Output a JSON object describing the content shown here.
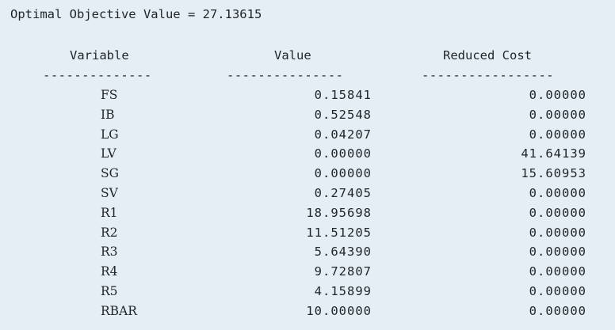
{
  "objective": {
    "text": "Optimal Objective Value = 27.13615"
  },
  "table": {
    "headers": {
      "variable": "Variable",
      "value": "Value",
      "reduced_cost": "Reduced Cost"
    },
    "dividers": {
      "variable": "--------------",
      "value": "---------------",
      "reduced_cost": "-----------------"
    },
    "rows": [
      {
        "variable": "FS",
        "value": "0.15841",
        "reduced_cost": "0.00000"
      },
      {
        "variable": "IB",
        "value": "0.52548",
        "reduced_cost": "0.00000"
      },
      {
        "variable": "LG",
        "value": "0.04207",
        "reduced_cost": "0.00000"
      },
      {
        "variable": "LV",
        "value": "0.00000",
        "reduced_cost": "41.64139"
      },
      {
        "variable": "SG",
        "value": "0.00000",
        "reduced_cost": "15.60953"
      },
      {
        "variable": "SV",
        "value": "0.27405",
        "reduced_cost": "0.00000"
      },
      {
        "variable": "R1",
        "value": "18.95698",
        "reduced_cost": "0.00000"
      },
      {
        "variable": "R2",
        "value": "11.51205",
        "reduced_cost": "0.00000"
      },
      {
        "variable": "R3",
        "value": "5.64390",
        "reduced_cost": "0.00000"
      },
      {
        "variable": "R4",
        "value": "9.72807",
        "reduced_cost": "0.00000"
      },
      {
        "variable": "R5",
        "value": "4.15899",
        "reduced_cost": "0.00000"
      },
      {
        "variable": "RBAR",
        "value": "10.00000",
        "reduced_cost": "0.00000"
      }
    ]
  }
}
